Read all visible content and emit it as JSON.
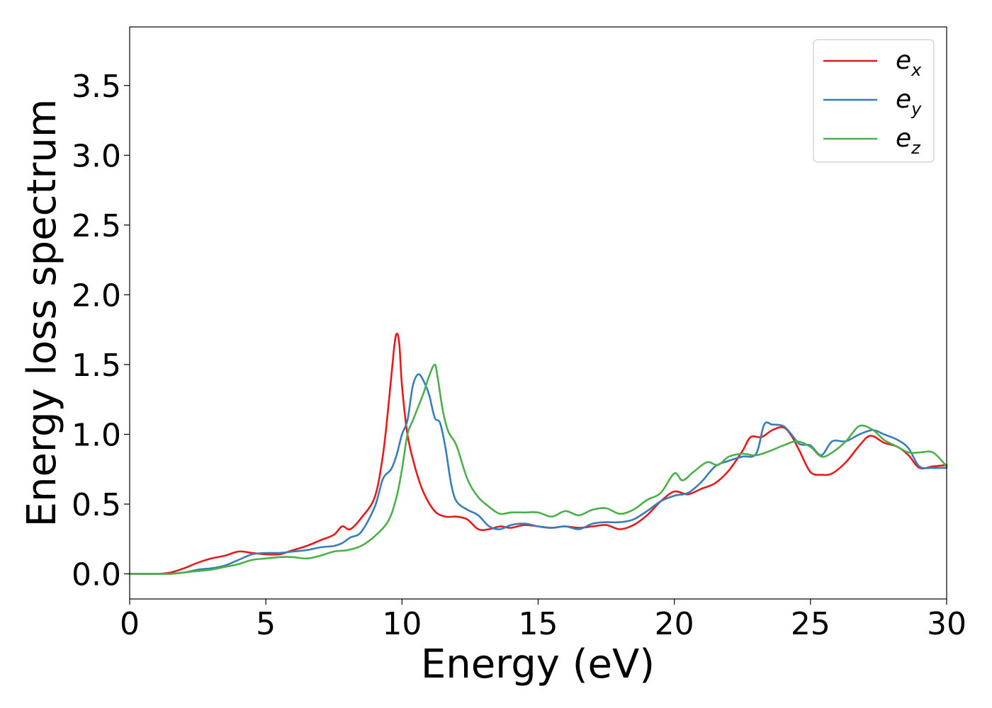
{
  "chart_data": {
    "type": "line",
    "title": "",
    "xlabel": "Energy (eV)",
    "ylabel": "Energy loss spectrum",
    "xlim": [
      0,
      30
    ],
    "ylim": [
      -0.18,
      3.92
    ],
    "xticks": [
      0,
      5,
      10,
      15,
      20,
      25,
      30
    ],
    "yticks": [
      0.0,
      0.5,
      1.0,
      1.5,
      2.0,
      2.5,
      3.0,
      3.5
    ],
    "xtick_labels": [
      "0",
      "5",
      "10",
      "15",
      "20",
      "25",
      "30"
    ],
    "ytick_labels": [
      "0.0",
      "0.5",
      "1.0",
      "1.5",
      "2.0",
      "2.5",
      "3.0",
      "3.5"
    ],
    "grid": false,
    "legend_position": "top-right",
    "series": [
      {
        "name": "e_x",
        "label_base": "e",
        "label_sub": "x",
        "color": "#e41a1c",
        "x": [
          0,
          1,
          1.5,
          2,
          2.5,
          3,
          3.5,
          4,
          4.5,
          5,
          5.5,
          6,
          6.5,
          7,
          7.5,
          7.8,
          8.1,
          8.5,
          9.0,
          9.3,
          9.5,
          9.7,
          9.8,
          9.9,
          10.0,
          10.2,
          10.5,
          10.8,
          11.2,
          11.6,
          12,
          12.4,
          12.8,
          13.2,
          13.6,
          14,
          14.5,
          15,
          15.5,
          16,
          16.5,
          17,
          17.5,
          18,
          18.5,
          19,
          19.5,
          20,
          20.5,
          21,
          21.5,
          22,
          22.5,
          22.8,
          23.2,
          23.6,
          24,
          24.3,
          24.6,
          25,
          25.4,
          25.8,
          26.3,
          26.8,
          27.2,
          27.7,
          28.2,
          28.6,
          29,
          29.5,
          30
        ],
        "y": [
          0.0,
          0.0,
          0.01,
          0.04,
          0.08,
          0.11,
          0.13,
          0.16,
          0.15,
          0.14,
          0.14,
          0.17,
          0.2,
          0.24,
          0.28,
          0.34,
          0.32,
          0.4,
          0.55,
          0.85,
          1.2,
          1.6,
          1.72,
          1.65,
          1.35,
          1.0,
          0.75,
          0.58,
          0.45,
          0.41,
          0.41,
          0.39,
          0.32,
          0.32,
          0.34,
          0.33,
          0.35,
          0.34,
          0.33,
          0.34,
          0.33,
          0.34,
          0.35,
          0.32,
          0.35,
          0.42,
          0.52,
          0.59,
          0.57,
          0.61,
          0.65,
          0.74,
          0.88,
          0.98,
          0.98,
          1.03,
          1.05,
          0.99,
          0.88,
          0.73,
          0.71,
          0.72,
          0.8,
          0.92,
          0.99,
          0.94,
          0.91,
          0.85,
          0.76,
          0.77,
          0.78
        ]
      },
      {
        "name": "e_y",
        "label_base": "e",
        "label_sub": "y",
        "color": "#377eb8",
        "x": [
          0,
          1,
          1.5,
          2,
          2.5,
          3,
          3.5,
          4,
          4.5,
          5,
          5.5,
          6,
          6.5,
          7,
          7.5,
          7.8,
          8.1,
          8.5,
          9.0,
          9.3,
          9.6,
          9.8,
          10.0,
          10.2,
          10.4,
          10.6,
          10.8,
          11.0,
          11.2,
          11.4,
          11.6,
          11.8,
          12.0,
          12.4,
          12.8,
          13.2,
          13.6,
          14,
          14.5,
          15,
          15.5,
          16,
          16.5,
          17,
          17.5,
          18,
          18.5,
          19,
          19.5,
          20,
          20.5,
          21,
          21.5,
          22,
          22.5,
          23,
          23.3,
          23.6,
          24,
          24.3,
          24.6,
          25,
          25.4,
          25.8,
          26.3,
          26.8,
          27.3,
          27.7,
          28.2,
          28.6,
          29,
          29.5,
          30
        ],
        "y": [
          0.0,
          0.0,
          0.0,
          0.01,
          0.03,
          0.04,
          0.06,
          0.1,
          0.14,
          0.15,
          0.15,
          0.16,
          0.17,
          0.19,
          0.2,
          0.22,
          0.26,
          0.3,
          0.48,
          0.68,
          0.75,
          0.85,
          1.0,
          1.1,
          1.35,
          1.43,
          1.38,
          1.28,
          1.12,
          1.08,
          0.9,
          0.65,
          0.52,
          0.46,
          0.42,
          0.34,
          0.32,
          0.35,
          0.36,
          0.34,
          0.33,
          0.34,
          0.32,
          0.36,
          0.37,
          0.37,
          0.39,
          0.45,
          0.52,
          0.56,
          0.58,
          0.66,
          0.77,
          0.81,
          0.84,
          0.86,
          1.07,
          1.07,
          1.06,
          1.0,
          0.93,
          0.92,
          0.85,
          0.95,
          0.95,
          1.0,
          1.03,
          1.0,
          0.96,
          0.9,
          0.77,
          0.76,
          0.76
        ]
      },
      {
        "name": "e_z",
        "label_base": "e",
        "label_sub": "z",
        "color": "#4daf4a",
        "x": [
          0,
          1,
          1.5,
          2,
          2.5,
          3,
          3.5,
          4,
          4.5,
          5,
          5.5,
          6,
          6.5,
          7,
          7.5,
          8,
          8.5,
          9.0,
          9.5,
          9.8,
          10.0,
          10.2,
          10.4,
          10.6,
          10.8,
          11.0,
          11.2,
          11.3,
          11.5,
          11.7,
          12.0,
          12.4,
          12.8,
          13.2,
          13.6,
          14,
          14.5,
          15,
          15.5,
          16,
          16.5,
          17,
          17.5,
          18,
          18.5,
          19,
          19.5,
          20,
          20.3,
          20.7,
          21.2,
          21.6,
          22,
          22.5,
          23,
          23.5,
          24,
          24.5,
          25,
          25.4,
          25.8,
          26.3,
          26.8,
          27.3,
          27.7,
          28.2,
          28.6,
          29,
          29.5,
          30
        ],
        "y": [
          0.0,
          0.0,
          0.0,
          0.01,
          0.02,
          0.03,
          0.05,
          0.07,
          0.1,
          0.11,
          0.12,
          0.12,
          0.11,
          0.13,
          0.16,
          0.17,
          0.2,
          0.27,
          0.38,
          0.55,
          0.75,
          1.0,
          1.1,
          1.2,
          1.3,
          1.42,
          1.5,
          1.42,
          1.17,
          1.02,
          0.92,
          0.68,
          0.55,
          0.48,
          0.43,
          0.44,
          0.44,
          0.44,
          0.41,
          0.45,
          0.42,
          0.46,
          0.47,
          0.43,
          0.46,
          0.53,
          0.58,
          0.72,
          0.67,
          0.73,
          0.8,
          0.78,
          0.84,
          0.86,
          0.85,
          0.88,
          0.92,
          0.95,
          0.91,
          0.84,
          0.87,
          0.95,
          1.06,
          1.03,
          0.96,
          0.91,
          0.87,
          0.87,
          0.87,
          0.77
        ]
      }
    ]
  }
}
